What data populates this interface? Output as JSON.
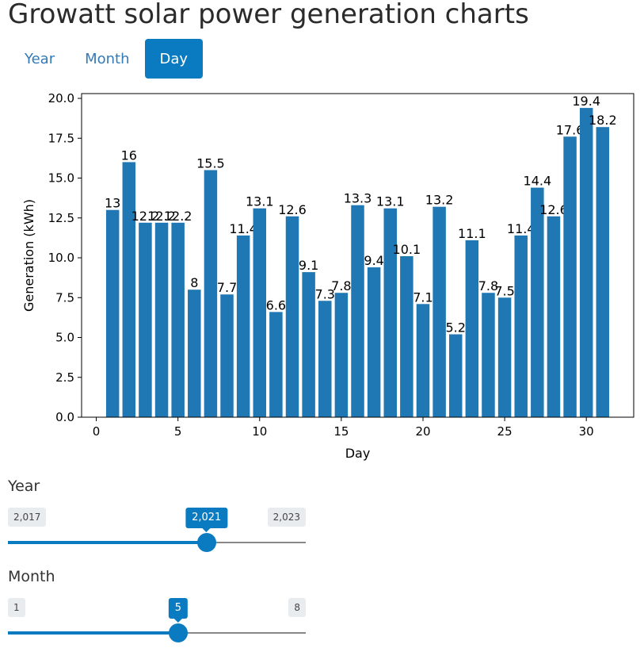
{
  "title": "Growatt solar power generation charts",
  "tabs": [
    {
      "label": "Year",
      "active": false
    },
    {
      "label": "Month",
      "active": false
    },
    {
      "label": "Day",
      "active": true
    }
  ],
  "colors": {
    "accent": "#0b7bc1",
    "bar": "#1f77b4"
  },
  "chart_data": {
    "type": "bar",
    "xlabel": "Day",
    "ylabel": "Generation (kWh)",
    "x": [
      1,
      2,
      3,
      4,
      5,
      6,
      7,
      8,
      9,
      10,
      11,
      12,
      13,
      14,
      15,
      16,
      17,
      18,
      19,
      20,
      21,
      22,
      23,
      24,
      25,
      26,
      27,
      28,
      29,
      30,
      31
    ],
    "values": [
      13,
      16,
      12.2,
      12.2,
      12.2,
      8,
      15.5,
      7.7,
      11.4,
      13.1,
      6.6,
      12.6,
      9.1,
      7.3,
      7.8,
      13.3,
      9.4,
      13.1,
      10.1,
      7.1,
      13.2,
      5.2,
      11.1,
      7.8,
      7.5,
      11.4,
      14.4,
      12.6,
      17.6,
      19.4,
      18.2
    ],
    "labels": [
      "13",
      "16",
      "12.2",
      "12.2",
      "12.2",
      "8",
      "15.5",
      "7.7",
      "11.4",
      "13.1",
      "6.6",
      "12.6",
      "9.1",
      "7.3",
      "7.8",
      "13.3",
      "9.4",
      "13.1",
      "10.1",
      "7.1",
      "13.2",
      "5.2",
      "11.1",
      "7.8",
      "7.5",
      "11.4",
      "14.4",
      "12.6",
      "17.6",
      "19.4",
      "18.2"
    ],
    "xlim": [
      -0.9,
      32.9
    ],
    "ylim": [
      0,
      20.3
    ],
    "xticks": [
      0,
      5,
      10,
      15,
      20,
      25,
      30
    ],
    "xtick_labels": [
      "0",
      "5",
      "10",
      "15",
      "20",
      "25",
      "30"
    ],
    "yticks": [
      0,
      2.5,
      5,
      7.5,
      10,
      12.5,
      15,
      17.5,
      20
    ],
    "ytick_labels": [
      "0.0",
      "2.5",
      "5.0",
      "7.5",
      "10.0",
      "12.5",
      "15.0",
      "17.5",
      "20.0"
    ],
    "grid": false,
    "legend": "none"
  },
  "sliders": {
    "year": {
      "label": "Year",
      "min": "2,017",
      "max": "2,023",
      "value": "2,021",
      "fraction": 0.6667
    },
    "month": {
      "label": "Month",
      "min": "1",
      "max": "8",
      "value": "5",
      "fraction": 0.5714
    }
  }
}
